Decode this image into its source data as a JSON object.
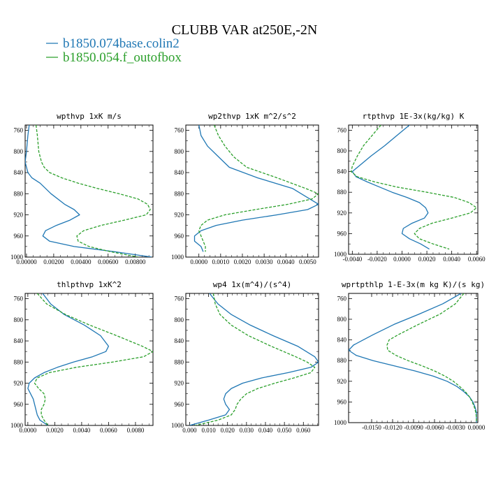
{
  "figure": {
    "title": "CLUBB VAR at250E,-2N",
    "legend": [
      {
        "name": "b1850.074base.colin2",
        "color": "#1f77b4",
        "dash": "solid"
      },
      {
        "name": "b1850.054.f_outofbox",
        "color": "#2ca02c",
        "dash": "dashed"
      }
    ]
  },
  "chart_data": [
    {
      "type": "line",
      "title": "wpthvp  1xK m/s",
      "xlim": [
        -0.0001,
        0.0093
      ],
      "xticks": [
        0.0,
        0.002,
        0.004,
        0.006,
        0.008
      ],
      "xtick_labels": [
        "0.00000",
        "0.00200",
        "0.00400",
        "0.00600",
        "0.00800"
      ],
      "ylim": [
        1000,
        750
      ],
      "yticks": [
        760,
        800,
        840,
        880,
        920,
        960,
        1000
      ],
      "series": [
        {
          "name": "b1850.074base.colin2",
          "y": [
            750,
            770,
            800,
            820,
            840,
            850,
            860,
            880,
            900,
            910,
            920,
            930,
            940,
            950,
            960,
            970,
            980,
            990,
            1000
          ],
          "x": [
            0.0002,
            0.0001,
            0.0,
            -0.0001,
            0.0001,
            0.0004,
            0.001,
            0.0018,
            0.0028,
            0.0035,
            0.0039,
            0.0032,
            0.0022,
            0.0014,
            0.0012,
            0.0017,
            0.0035,
            0.0065,
            0.0092
          ]
        },
        {
          "name": "b1850.054.f_outofbox",
          "y": [
            750,
            770,
            800,
            820,
            830,
            840,
            850,
            860,
            870,
            880,
            890,
            900,
            910,
            920,
            930,
            940,
            950,
            960,
            970,
            980,
            990,
            1000
          ],
          "x": [
            0.0007,
            0.0008,
            0.0009,
            0.0011,
            0.0013,
            0.0017,
            0.0026,
            0.0038,
            0.0052,
            0.0068,
            0.0082,
            0.0089,
            0.0091,
            0.0088,
            0.0072,
            0.0055,
            0.0042,
            0.0037,
            0.0038,
            0.0046,
            0.0062,
            0.0082
          ]
        }
      ]
    },
    {
      "type": "line",
      "title": "wp2thvp  1xK m^2/s^2",
      "xlim": [
        -0.0006,
        0.0055
      ],
      "xticks": [
        0.0,
        0.001,
        0.002,
        0.003,
        0.004,
        0.005
      ],
      "xtick_labels": [
        "0.0000",
        "0.0010",
        "0.0020",
        "0.0030",
        "0.0040",
        "0.0050"
      ],
      "ylim": [
        1000,
        750
      ],
      "yticks": [
        760,
        800,
        840,
        880,
        920,
        960,
        1000
      ],
      "series": [
        {
          "name": "b1850.074base.colin2",
          "y": [
            750,
            770,
            790,
            810,
            830,
            850,
            870,
            890,
            900,
            910,
            920,
            930,
            940,
            950,
            960,
            970,
            980,
            990
          ],
          "x": [
            0.0,
            0.0001,
            0.0004,
            0.0009,
            0.0014,
            0.0027,
            0.0043,
            0.0051,
            0.0055,
            0.005,
            0.0036,
            0.002,
            0.0008,
            0.0001,
            -0.0002,
            -0.0002,
            0.0001,
            0.0002
          ]
        },
        {
          "name": "b1850.054.f_outofbox",
          "y": [
            750,
            770,
            790,
            810,
            830,
            850,
            870,
            880,
            890,
            900,
            910,
            920,
            930,
            940,
            950,
            960,
            970,
            980,
            990
          ],
          "x": [
            0.0007,
            0.0009,
            0.0012,
            0.0016,
            0.0022,
            0.0036,
            0.0049,
            0.0055,
            0.0052,
            0.0041,
            0.0026,
            0.0012,
            0.0004,
            0.0001,
            0.0,
            0.0001,
            0.0002,
            0.0003,
            0.0003
          ]
        }
      ]
    },
    {
      "type": "line",
      "title": "rtpthvp  1E-3x(kg/kg) K",
      "xlim": [
        -0.0043,
        0.0061
      ],
      "xticks": [
        -0.004,
        -0.002,
        0.0,
        0.002,
        0.004,
        0.006
      ],
      "xtick_labels": [
        "-0.0040",
        "-0.0020",
        "0.0000",
        "0.0020",
        "0.0040",
        "0.0060"
      ],
      "ylim": [
        1000,
        750
      ],
      "yticks": [
        760,
        800,
        840,
        880,
        920,
        960,
        1000
      ],
      "series": [
        {
          "name": "b1850.074base.colin2",
          "y": [
            750,
            770,
            790,
            810,
            830,
            840,
            850,
            860,
            870,
            880,
            890,
            900,
            910,
            920,
            930,
            940,
            950,
            960,
            970,
            980,
            990
          ],
          "x": [
            0.0006,
            -0.0004,
            -0.0014,
            -0.0025,
            -0.0035,
            -0.004,
            -0.0037,
            -0.0028,
            -0.0018,
            -0.0008,
            0.0004,
            0.0014,
            0.0019,
            0.0021,
            0.0018,
            0.0008,
            0.0001,
            0.0,
            0.0006,
            0.0015,
            0.0022
          ]
        },
        {
          "name": "b1850.054.f_outofbox",
          "y": [
            750,
            770,
            790,
            810,
            830,
            840,
            850,
            860,
            870,
            880,
            890,
            900,
            910,
            920,
            930,
            940,
            950,
            960,
            970,
            980,
            990
          ],
          "x": [
            -0.0017,
            -0.0024,
            -0.0031,
            -0.0036,
            -0.004,
            -0.0041,
            -0.0036,
            -0.0022,
            -0.0004,
            0.002,
            0.0042,
            0.0054,
            0.006,
            0.0055,
            0.004,
            0.0024,
            0.0014,
            0.001,
            0.0014,
            0.0025,
            0.0038
          ]
        }
      ]
    },
    {
      "type": "line",
      "title": "thlpthvp  1xK^2",
      "xlim": [
        -0.0002,
        0.0093
      ],
      "xticks": [
        0.0,
        0.002,
        0.004,
        0.006,
        0.008
      ],
      "xtick_labels": [
        "0.0000",
        "0.0020",
        "0.0040",
        "0.0060",
        "0.0080"
      ],
      "ylim": [
        1000,
        750
      ],
      "yticks": [
        760,
        800,
        840,
        880,
        920,
        960,
        1000
      ],
      "series": [
        {
          "name": "b1850.074base.colin2",
          "y": [
            750,
            770,
            790,
            810,
            830,
            850,
            860,
            870,
            880,
            890,
            900,
            910,
            920,
            930,
            940,
            950,
            960,
            970,
            980,
            990,
            1000
          ],
          "x": [
            0.0011,
            0.0017,
            0.0027,
            0.0042,
            0.0054,
            0.006,
            0.0058,
            0.0048,
            0.0034,
            0.0022,
            0.0012,
            0.0005,
            0.0001,
            0.0,
            0.0002,
            0.0004,
            0.0005,
            0.0006,
            0.0007,
            0.0009,
            0.0015
          ]
        },
        {
          "name": "b1850.054.f_outofbox",
          "y": [
            750,
            770,
            790,
            810,
            830,
            850,
            860,
            870,
            880,
            890,
            900,
            910,
            920,
            930,
            940,
            950,
            960,
            970,
            980,
            990,
            1000
          ],
          "x": [
            0.0007,
            0.0014,
            0.0028,
            0.0046,
            0.0066,
            0.0085,
            0.0093,
            0.0086,
            0.0063,
            0.0036,
            0.0016,
            0.0007,
            0.0005,
            0.0008,
            0.0012,
            0.0013,
            0.0012,
            0.001,
            0.001,
            0.0012,
            0.0015
          ]
        }
      ]
    },
    {
      "type": "line",
      "title": "wp4  1x(m^4)/(s^4)",
      "xlim": [
        -0.002,
        0.068
      ],
      "xticks": [
        0.0,
        0.01,
        0.02,
        0.03,
        0.04,
        0.05,
        0.06
      ],
      "xtick_labels": [
        "0.000",
        "0.010",
        "0.020",
        "0.030",
        "0.040",
        "0.050",
        "0.060"
      ],
      "ylim": [
        1000,
        750
      ],
      "yticks": [
        760,
        800,
        840,
        880,
        920,
        960,
        1000
      ],
      "series": [
        {
          "name": "b1850.074base.colin2",
          "y": [
            750,
            770,
            790,
            810,
            830,
            850,
            870,
            880,
            890,
            900,
            910,
            920,
            930,
            940,
            950,
            960,
            970,
            980,
            990,
            1000
          ],
          "x": [
            0.0105,
            0.015,
            0.022,
            0.032,
            0.044,
            0.057,
            0.066,
            0.068,
            0.064,
            0.052,
            0.038,
            0.028,
            0.022,
            0.019,
            0.018,
            0.019,
            0.021,
            0.019,
            0.01,
            0.0
          ]
        },
        {
          "name": "b1850.054.f_outofbox",
          "y": [
            750,
            770,
            790,
            810,
            830,
            850,
            870,
            880,
            890,
            900,
            910,
            920,
            930,
            940,
            950,
            960,
            970,
            980,
            990,
            1000
          ],
          "x": [
            0.0125,
            0.0135,
            0.016,
            0.022,
            0.031,
            0.043,
            0.056,
            0.062,
            0.066,
            0.064,
            0.055,
            0.045,
            0.036,
            0.03,
            0.027,
            0.025,
            0.024,
            0.022,
            0.015,
            0.003
          ]
        }
      ]
    },
    {
      "type": "line",
      "title": "wprtpthlp  1-E-3x(m kg K)/(s kg)",
      "xlim": [
        -0.0183,
        0.0002
      ],
      "xticks": [
        -0.015,
        -0.012,
        -0.009,
        -0.006,
        -0.003,
        0.0
      ],
      "xtick_labels": [
        "-0.0150",
        "-0.0120",
        "-0.0090",
        "-0.0060",
        "-0.0030",
        "0.0000"
      ],
      "ylim": [
        1000,
        750
      ],
      "yticks": [
        760,
        800,
        840,
        880,
        920,
        960,
        1000
      ],
      "series": [
        {
          "name": "b1850.074base.colin2",
          "y": [
            750,
            770,
            790,
            810,
            830,
            840,
            850,
            860,
            870,
            880,
            890,
            900,
            910,
            920,
            930,
            940,
            950,
            960,
            970,
            980,
            990,
            1000
          ],
          "x": [
            -0.0022,
            -0.0048,
            -0.0082,
            -0.0118,
            -0.0148,
            -0.0162,
            -0.0176,
            -0.0183,
            -0.0172,
            -0.0148,
            -0.0118,
            -0.0088,
            -0.0062,
            -0.0042,
            -0.0028,
            -0.0018,
            -0.001,
            -0.0005,
            -0.0002,
            0.0,
            0.0,
            0.0
          ]
        },
        {
          "name": "b1850.054.f_outofbox",
          "y": [
            750,
            770,
            790,
            810,
            830,
            840,
            850,
            860,
            870,
            880,
            890,
            900,
            910,
            920,
            930,
            940,
            950,
            960,
            970,
            980,
            990,
            1000
          ],
          "x": [
            -0.0018,
            -0.003,
            -0.0052,
            -0.0083,
            -0.0112,
            -0.0125,
            -0.0128,
            -0.0127,
            -0.0115,
            -0.0098,
            -0.0078,
            -0.006,
            -0.0045,
            -0.0033,
            -0.0024,
            -0.0016,
            -0.001,
            -0.0006,
            -0.0003,
            -0.0001,
            0.0,
            0.0
          ]
        }
      ]
    }
  ]
}
